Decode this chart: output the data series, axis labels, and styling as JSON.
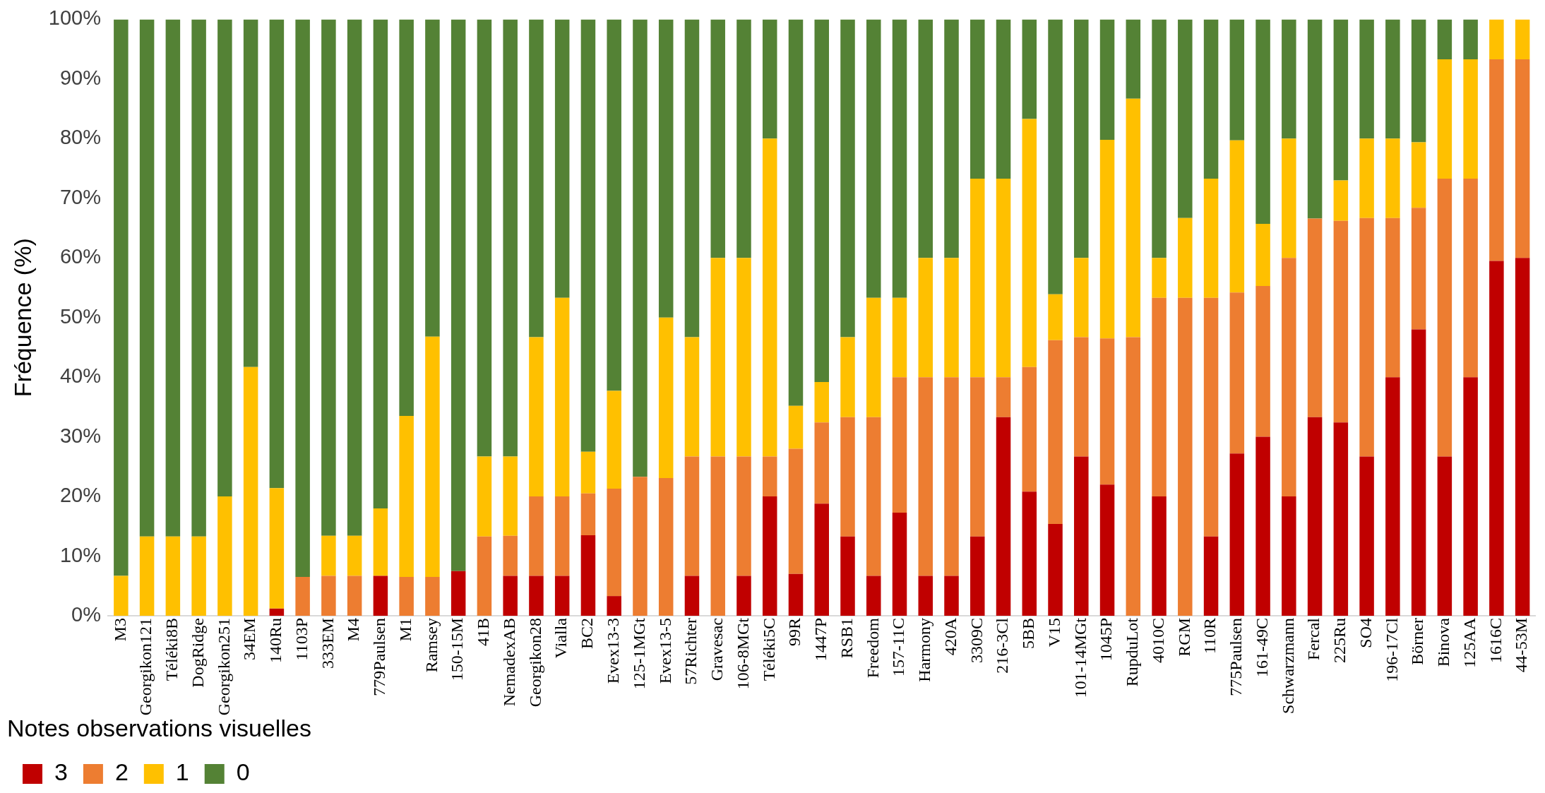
{
  "chart_data": {
    "type": "bar",
    "stacked": true,
    "ylabel": "Fréquence (%)",
    "legend_title": "Notes observations visuelles",
    "legend": "bottom",
    "grid": false,
    "categories": [
      "M3",
      "Georgikon121",
      "Téléki8B",
      "DogRidge",
      "Georgikon251",
      "34EM",
      "140Ru",
      "1103P",
      "333EM",
      "M4",
      "779Paulsen",
      "M1",
      "Ramsey",
      "150-15M",
      "41B",
      "NemadexAB",
      "Georgikon28",
      "Vialla",
      "BC2",
      "Evex13-3",
      "125-1MGt",
      "Evex13-5",
      "57Richter",
      "Gravesac",
      "106-8MGt",
      "Téléki5C",
      "99R",
      "1447P",
      "RSB1",
      "Freedom",
      "157-11C",
      "Harmony",
      "420A",
      "3309C",
      "216-3Cl",
      "5BB",
      "V15",
      "101-14MGt",
      "1045P",
      "RupduLot",
      "4010C",
      "RGM",
      "110R",
      "775Paulsen",
      "161-49C",
      "Schwarzmann",
      "Fercal",
      "225Ru",
      "SO4",
      "196-17Cl",
      "Börner",
      "Binova",
      "125AA",
      "1616C",
      "44-53M"
    ],
    "ylim": [
      0,
      100
    ],
    "yticks": [
      {
        "value": 0,
        "label": "0%"
      },
      {
        "value": 10,
        "label": "10%"
      },
      {
        "value": 20,
        "label": "20%"
      },
      {
        "value": 30,
        "label": "30%"
      },
      {
        "value": 40,
        "label": "40%"
      },
      {
        "value": 50,
        "label": "50%"
      },
      {
        "value": 60,
        "label": "60%"
      },
      {
        "value": 70,
        "label": "70%"
      },
      {
        "value": 80,
        "label": "80%"
      },
      {
        "value": 90,
        "label": "90%"
      },
      {
        "value": 100,
        "label": "100%"
      }
    ],
    "series": [
      {
        "name": "3",
        "color": "#c00000",
        "values": [
          0,
          0,
          0,
          0,
          0,
          0,
          1.2,
          0,
          0,
          0,
          6.7,
          0,
          0,
          7.5,
          0,
          6.7,
          6.7,
          6.7,
          13.5,
          3.3,
          0,
          0,
          6.7,
          0,
          6.7,
          20,
          7,
          18.8,
          13.3,
          6.7,
          17.3,
          6.7,
          6.7,
          13.3,
          33.3,
          20.8,
          15.4,
          26.7,
          22,
          0,
          20,
          0,
          13.3,
          27.2,
          30,
          20,
          33.3,
          32.4,
          26.7,
          40,
          48,
          26.7,
          40,
          59.5,
          60
        ]
      },
      {
        "name": "2",
        "color": "#ed7d31",
        "values": [
          0,
          0,
          0,
          0,
          0,
          0,
          0,
          6.5,
          6.7,
          6.7,
          0,
          6.5,
          6.5,
          0,
          13.3,
          6.7,
          13.3,
          13.3,
          7,
          18,
          23.3,
          23.1,
          20,
          26.7,
          20,
          6.7,
          21,
          13.6,
          20,
          26.6,
          22.7,
          33.3,
          33.3,
          26.7,
          6.7,
          20.9,
          30.8,
          20,
          24.5,
          46.7,
          33.3,
          53.3,
          40,
          27,
          25.3,
          40,
          33.3,
          33.8,
          40,
          26.7,
          20.4,
          46.6,
          33.3,
          33.8,
          33.3
        ]
      },
      {
        "name": "1",
        "color": "#ffc000",
        "values": [
          6.7,
          13.3,
          13.3,
          13.3,
          20,
          41.7,
          20.2,
          0,
          6.7,
          6.7,
          11.3,
          27,
          40.3,
          0,
          13.4,
          13.3,
          26.7,
          33.3,
          7,
          16.4,
          0,
          26.9,
          20,
          33.3,
          33.3,
          53.3,
          7.2,
          6.8,
          13.4,
          20,
          13.3,
          20,
          20,
          33.3,
          33.3,
          41.6,
          7.7,
          13.3,
          33.3,
          40,
          6.7,
          13.4,
          20,
          25.5,
          10.4,
          20,
          0,
          6.8,
          13.3,
          13.3,
          11,
          20,
          20,
          6.7,
          6.7
        ]
      },
      {
        "name": "0",
        "color": "#548235",
        "values": [
          93.3,
          86.7,
          86.7,
          86.7,
          80,
          58.3,
          78.6,
          93.5,
          86.6,
          86.6,
          82,
          66.5,
          53.2,
          92.5,
          73.3,
          73.3,
          53.3,
          46.7,
          72.5,
          62.3,
          76.7,
          50,
          53.3,
          40,
          40,
          20,
          64.8,
          60.8,
          53.3,
          46.7,
          46.7,
          40,
          40,
          26.7,
          26.7,
          16.7,
          46.1,
          40,
          20.2,
          13.3,
          40,
          33.3,
          26.7,
          20.3,
          34.3,
          20,
          33.4,
          27,
          20,
          20,
          20.6,
          6.7,
          6.7,
          0,
          0
        ]
      }
    ]
  }
}
